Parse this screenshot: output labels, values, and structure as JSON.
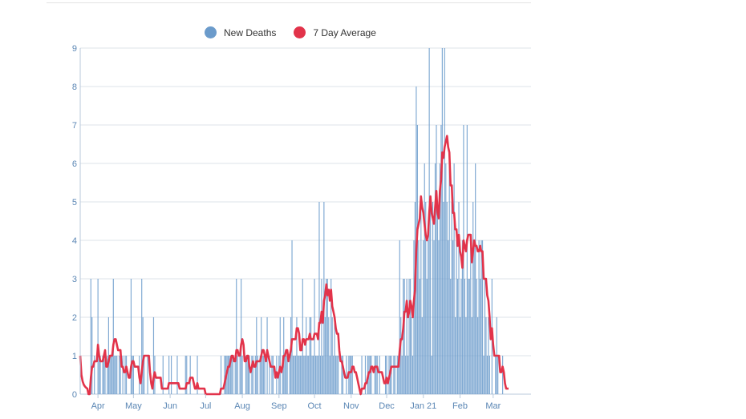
{
  "chart_data": {
    "type": "bar",
    "title": "",
    "xlabel": "",
    "ylabel": "",
    "ylim": [
      0,
      9
    ],
    "yticks": [
      "0",
      "1",
      "2",
      "3",
      "4",
      "5",
      "6",
      "7",
      "8",
      "9"
    ],
    "grid": true,
    "legend_position": "top-center",
    "legend": [
      {
        "label": "New Deaths",
        "color": "#6b9bcb"
      },
      {
        "label": "7 Day Average",
        "color": "#e2334a"
      }
    ],
    "start_date": "2020-03-17",
    "x_ticks": [
      {
        "label": "Apr",
        "day": 15
      },
      {
        "label": "May",
        "day": 45
      },
      {
        "label": "Jun",
        "day": 76
      },
      {
        "label": "Jul",
        "day": 106
      },
      {
        "label": "Aug",
        "day": 137
      },
      {
        "label": "Sep",
        "day": 168
      },
      {
        "label": "Oct",
        "day": 198
      },
      {
        "label": "Nov",
        "day": 229
      },
      {
        "label": "Dec",
        "day": 259
      },
      {
        "label": "Jan 21",
        "day": 290
      },
      {
        "label": "Feb",
        "day": 321
      },
      {
        "label": "Mar",
        "day": 349
      }
    ],
    "x_domain_days": [
      0,
      381
    ],
    "series": [
      {
        "name": "New Deaths",
        "type": "bar",
        "values": [
          1,
          0,
          0,
          0,
          0,
          0,
          0,
          0,
          0,
          3,
          2,
          0,
          1,
          0,
          0,
          3,
          1,
          1,
          0,
          1,
          1,
          1,
          0,
          1,
          2,
          1,
          1,
          1,
          3,
          1,
          1,
          1,
          0,
          1,
          1,
          0,
          1,
          0,
          1,
          1,
          0,
          0,
          0,
          3,
          1,
          1,
          0,
          0,
          0,
          0,
          1,
          0,
          3,
          2,
          1,
          0,
          0,
          1,
          0,
          0,
          0,
          0,
          2,
          1,
          0,
          0,
          0,
          0,
          0,
          0,
          1,
          0,
          0,
          0,
          0,
          1,
          0,
          1,
          0,
          0,
          0,
          0,
          1,
          0,
          0,
          0,
          0,
          0,
          0,
          1,
          1,
          0,
          0,
          1,
          0,
          0,
          0,
          0,
          0,
          1,
          0,
          0,
          0,
          0,
          0,
          0,
          0,
          0,
          0,
          0,
          0,
          0,
          0,
          0,
          0,
          0,
          0,
          0,
          0,
          1,
          0,
          0,
          1,
          1,
          1,
          1,
          1,
          1,
          1,
          1,
          0,
          1,
          3,
          1,
          0,
          1,
          3,
          1,
          0,
          0,
          1,
          1,
          1,
          1,
          0,
          1,
          1,
          0,
          1,
          2,
          1,
          0,
          1,
          2,
          1,
          1,
          1,
          0,
          2,
          0,
          1,
          0,
          1,
          1,
          0,
          0,
          1,
          0,
          1,
          2,
          0,
          1,
          2,
          1,
          1,
          1,
          0,
          1,
          2,
          4,
          1,
          1,
          1,
          2,
          1,
          1,
          1,
          1,
          3,
          1,
          1,
          2,
          1,
          1,
          2,
          2,
          1,
          1,
          3,
          1,
          1,
          1,
          5,
          1,
          3,
          1,
          5,
          2,
          3,
          3,
          2,
          1,
          3,
          2,
          1,
          2,
          1,
          1,
          1,
          0,
          0,
          1,
          1,
          0,
          0,
          1,
          0,
          1,
          1,
          1,
          1,
          0,
          0,
          0,
          0,
          0,
          0,
          0,
          1,
          0,
          0,
          1,
          0,
          1,
          1,
          1,
          1,
          0,
          0,
          1,
          1,
          1,
          0,
          1,
          0,
          0,
          0,
          0,
          1,
          1,
          0,
          1,
          1,
          1,
          0,
          1,
          1,
          0,
          1,
          1,
          4,
          2,
          1,
          3,
          3,
          1,
          3,
          1,
          3,
          3,
          2,
          1,
          4,
          5,
          8,
          7,
          4,
          3,
          5,
          2,
          4,
          6,
          5,
          3,
          4,
          9,
          5,
          1,
          5,
          4,
          6,
          7,
          5,
          4,
          6,
          7,
          9,
          5,
          9,
          6,
          5,
          4,
          6,
          3,
          5,
          4,
          6,
          2,
          4,
          3,
          5,
          2,
          3,
          4,
          7,
          3,
          2,
          7,
          3,
          3,
          4,
          2,
          5,
          4,
          6,
          3,
          2,
          4,
          3,
          4,
          4,
          1,
          3,
          2,
          1,
          2,
          1,
          0,
          3,
          0,
          0,
          1,
          2,
          1,
          0,
          0,
          0,
          1,
          0,
          0,
          0,
          0,
          0
        ]
      },
      {
        "name": "7 Day Average",
        "type": "line",
        "derived_from": "New Deaths",
        "window_days": 7
      }
    ]
  }
}
